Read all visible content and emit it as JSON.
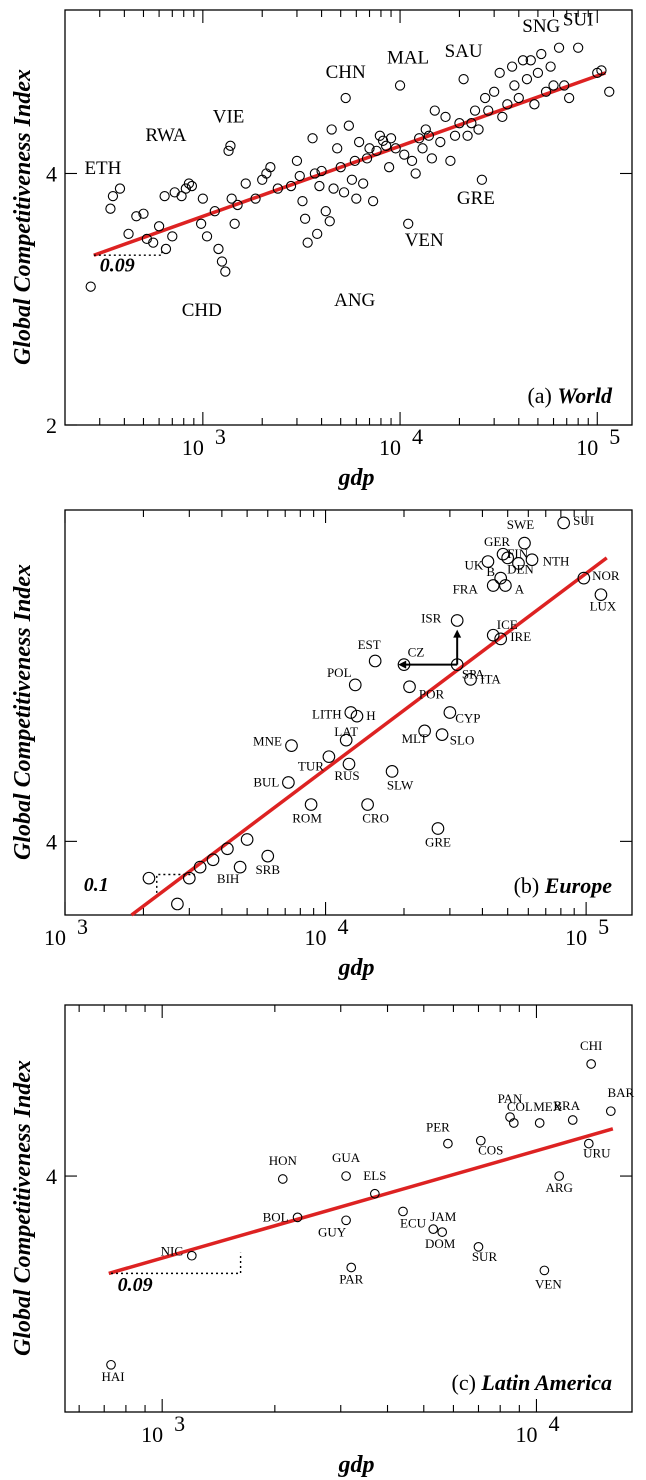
{
  "chart_data": [
    {
      "type": "scatter",
      "panel_label": "(a)",
      "title": "World",
      "xlabel": "gdp",
      "ylabel": "Global Competitiveness Index",
      "x_scale": "log",
      "xlim": [
        200,
        150000
      ],
      "ylim": [
        2,
        5.3
      ],
      "x_ticks": [
        {
          "v": 1000,
          "label": "10"
        },
        {
          "v": 10000,
          "label": "10"
        },
        {
          "v": 100000,
          "label": "10"
        }
      ],
      "x_tick_exps": [
        "3",
        "4",
        "5"
      ],
      "y_ticks": [
        {
          "v": 4,
          "label": "4"
        },
        {
          "v": 2,
          "label": "2"
        }
      ],
      "fit_line": [
        [
          280,
          3.35
        ],
        [
          110000,
          4.8
        ]
      ],
      "slope_label": "0.09",
      "labeled_points": [
        {
          "name": "ETH",
          "x": 350,
          "y": 3.82
        },
        {
          "name": "RWA",
          "x": 650,
          "y": 4.1
        },
        {
          "name": "VIE",
          "x": 1350,
          "y": 4.2
        },
        {
          "name": "CHD",
          "x": 900,
          "y": 3.04
        },
        {
          "name": "CHN",
          "x": 5300,
          "y": 4.6
        },
        {
          "name": "MAL",
          "x": 10000,
          "y": 4.7
        },
        {
          "name": "SAU",
          "x": 21000,
          "y": 4.75
        },
        {
          "name": "SNG",
          "x": 52000,
          "y": 4.95
        },
        {
          "name": "SUI",
          "x": 80000,
          "y": 5.0
        },
        {
          "name": "ANG",
          "x": 5000,
          "y": 3.12
        },
        {
          "name": "VEN",
          "x": 11000,
          "y": 3.6
        },
        {
          "name": "GRE",
          "x": 26000,
          "y": 3.95
        }
      ],
      "points": [
        [
          270,
          3.1
        ],
        [
          350,
          3.82
        ],
        [
          340,
          3.72
        ],
        [
          380,
          3.88
        ],
        [
          420,
          3.52
        ],
        [
          460,
          3.66
        ],
        [
          500,
          3.68
        ],
        [
          520,
          3.48
        ],
        [
          560,
          3.45
        ],
        [
          600,
          3.58
        ],
        [
          650,
          3.4
        ],
        [
          700,
          3.5
        ],
        [
          640,
          3.82
        ],
        [
          720,
          3.85
        ],
        [
          780,
          3.82
        ],
        [
          820,
          3.88
        ],
        [
          850,
          3.92
        ],
        [
          880,
          3.9
        ],
        [
          980,
          3.6
        ],
        [
          1000,
          3.8
        ],
        [
          1050,
          3.5
        ],
        [
          1150,
          3.7
        ],
        [
          1200,
          3.4
        ],
        [
          1250,
          3.3
        ],
        [
          1300,
          3.22
        ],
        [
          1350,
          4.18
        ],
        [
          1380,
          4.22
        ],
        [
          1400,
          3.8
        ],
        [
          1450,
          3.6
        ],
        [
          1500,
          3.75
        ],
        [
          1650,
          3.92
        ],
        [
          1850,
          3.8
        ],
        [
          2000,
          3.95
        ],
        [
          2100,
          4.0
        ],
        [
          2200,
          4.05
        ],
        [
          2400,
          3.88
        ],
        [
          2800,
          3.9
        ],
        [
          3000,
          4.1
        ],
        [
          3100,
          3.98
        ],
        [
          3200,
          3.78
        ],
        [
          3300,
          3.64
        ],
        [
          3400,
          3.45
        ],
        [
          3600,
          4.28
        ],
        [
          3700,
          4.0
        ],
        [
          3800,
          3.52
        ],
        [
          3900,
          3.9
        ],
        [
          4000,
          4.02
        ],
        [
          4200,
          3.7
        ],
        [
          4400,
          3.62
        ],
        [
          4500,
          4.35
        ],
        [
          4600,
          3.88
        ],
        [
          4800,
          4.2
        ],
        [
          5000,
          4.05
        ],
        [
          5200,
          3.85
        ],
        [
          5300,
          4.6
        ],
        [
          5500,
          4.38
        ],
        [
          5700,
          3.95
        ],
        [
          5900,
          4.1
        ],
        [
          6000,
          3.8
        ],
        [
          6200,
          4.25
        ],
        [
          6500,
          3.92
        ],
        [
          6800,
          4.12
        ],
        [
          7000,
          4.2
        ],
        [
          7300,
          3.78
        ],
        [
          7600,
          4.18
        ],
        [
          7900,
          4.3
        ],
        [
          8200,
          4.26
        ],
        [
          8500,
          4.22
        ],
        [
          8800,
          4.05
        ],
        [
          9000,
          4.28
        ],
        [
          9500,
          4.2
        ],
        [
          10000,
          4.7
        ],
        [
          10500,
          4.15
        ],
        [
          11000,
          3.6
        ],
        [
          11500,
          4.1
        ],
        [
          12000,
          4.0
        ],
        [
          12500,
          4.28
        ],
        [
          13000,
          4.2
        ],
        [
          13500,
          4.35
        ],
        [
          14000,
          4.3
        ],
        [
          14500,
          4.12
        ],
        [
          15000,
          4.5
        ],
        [
          16000,
          4.25
        ],
        [
          17000,
          4.45
        ],
        [
          18000,
          4.1
        ],
        [
          19000,
          4.3
        ],
        [
          20000,
          4.4
        ],
        [
          21000,
          4.75
        ],
        [
          22000,
          4.3
        ],
        [
          23000,
          4.4
        ],
        [
          24000,
          4.5
        ],
        [
          25000,
          4.35
        ],
        [
          26000,
          3.95
        ],
        [
          27000,
          4.6
        ],
        [
          28000,
          4.5
        ],
        [
          30000,
          4.65
        ],
        [
          32000,
          4.8
        ],
        [
          33000,
          4.45
        ],
        [
          35000,
          4.55
        ],
        [
          37000,
          4.85
        ],
        [
          38000,
          4.7
        ],
        [
          40000,
          4.6
        ],
        [
          42000,
          4.9
        ],
        [
          44000,
          4.75
        ],
        [
          46000,
          4.9
        ],
        [
          48000,
          4.55
        ],
        [
          50000,
          4.8
        ],
        [
          52000,
          4.95
        ],
        [
          55000,
          4.65
        ],
        [
          58000,
          4.85
        ],
        [
          60000,
          4.7
        ],
        [
          64000,
          5.0
        ],
        [
          68000,
          4.7
        ],
        [
          72000,
          4.6
        ],
        [
          80000,
          5.0
        ],
        [
          100000,
          4.8
        ],
        [
          105000,
          4.82
        ],
        [
          115000,
          4.65
        ]
      ]
    },
    {
      "type": "scatter",
      "panel_label": "(b)",
      "title": "Europe",
      "xlabel": "gdp",
      "ylabel": "Global Competitiveness Index",
      "x_scale": "log",
      "xlim": [
        1000,
        150000
      ],
      "ylim": [
        3.6,
        5.8
      ],
      "x_ticks": [
        {
          "v": 1000,
          "label": "10"
        },
        {
          "v": 10000,
          "label": "10"
        },
        {
          "v": 100000,
          "label": "10"
        }
      ],
      "x_tick_exps": [
        "3",
        "4",
        "5"
      ],
      "y_ticks": [
        {
          "v": 4,
          "label": "4"
        }
      ],
      "fit_line": [
        [
          1800,
          3.6
        ],
        [
          120000,
          5.54
        ]
      ],
      "slope_label": "0.1",
      "labeled_points": [
        {
          "name": "SUI",
          "x": 82000,
          "y": 5.73
        },
        {
          "name": "SWE",
          "x": 58000,
          "y": 5.62
        },
        {
          "name": "GER",
          "x": 48000,
          "y": 5.56
        },
        {
          "name": "FIN",
          "x": 50000,
          "y": 5.54
        },
        {
          "name": "UK",
          "x": 42000,
          "y": 5.52
        },
        {
          "name": "NTH",
          "x": 62000,
          "y": 5.53
        },
        {
          "name": "DEN",
          "x": 55000,
          "y": 5.51
        },
        {
          "name": "B",
          "x": 47000,
          "y": 5.43
        },
        {
          "name": "NOR",
          "x": 98000,
          "y": 5.43
        },
        {
          "name": "FRA",
          "x": 44000,
          "y": 5.39
        },
        {
          "name": "A",
          "x": 49000,
          "y": 5.39
        },
        {
          "name": "LUX",
          "x": 114000,
          "y": 5.34
        },
        {
          "name": "ISR",
          "x": 32000,
          "y": 5.2
        },
        {
          "name": "ICE",
          "x": 44000,
          "y": 5.12
        },
        {
          "name": "IRE",
          "x": 47000,
          "y": 5.1
        },
        {
          "name": "EST",
          "x": 15500,
          "y": 4.98
        },
        {
          "name": "CZ",
          "x": 20000,
          "y": 4.96
        },
        {
          "name": "SPA",
          "x": 32000,
          "y": 4.96
        },
        {
          "name": "POL",
          "x": 13000,
          "y": 4.85
        },
        {
          "name": "POR",
          "x": 21000,
          "y": 4.84
        },
        {
          "name": "ITA",
          "x": 36000,
          "y": 4.88
        },
        {
          "name": "LITH",
          "x": 12500,
          "y": 4.7
        },
        {
          "name": "H",
          "x": 13200,
          "y": 4.68
        },
        {
          "name": "CYP",
          "x": 30000,
          "y": 4.7
        },
        {
          "name": "MNE",
          "x": 7400,
          "y": 4.52
        },
        {
          "name": "LAT",
          "x": 12000,
          "y": 4.55
        },
        {
          "name": "MLT",
          "x": 24000,
          "y": 4.6
        },
        {
          "name": "SLO",
          "x": 28000,
          "y": 4.58
        },
        {
          "name": "TUR",
          "x": 10300,
          "y": 4.46
        },
        {
          "name": "BUL",
          "x": 7200,
          "y": 4.32
        },
        {
          "name": "RUS",
          "x": 12300,
          "y": 4.42
        },
        {
          "name": "SLW",
          "x": 18000,
          "y": 4.38
        },
        {
          "name": "ROM",
          "x": 8800,
          "y": 4.2
        },
        {
          "name": "CRO",
          "x": 14500,
          "y": 4.2
        },
        {
          "name": "SRB",
          "x": 6000,
          "y": 3.92
        },
        {
          "name": "BIH",
          "x": 4700,
          "y": 3.86
        },
        {
          "name": "GRE",
          "x": 27000,
          "y": 4.07
        }
      ],
      "points": [
        [
          2100,
          3.8
        ],
        [
          2700,
          3.66
        ],
        [
          3000,
          3.8
        ],
        [
          3300,
          3.86
        ],
        [
          3700,
          3.9
        ],
        [
          4200,
          3.96
        ],
        [
          4700,
          3.86
        ],
        [
          5000,
          4.01
        ],
        [
          6000,
          3.92
        ],
        [
          7200,
          4.32
        ],
        [
          7400,
          4.52
        ],
        [
          8800,
          4.2
        ],
        [
          10300,
          4.46
        ],
        [
          12000,
          4.55
        ],
        [
          12300,
          4.42
        ],
        [
          12500,
          4.7
        ],
        [
          13000,
          4.85
        ],
        [
          13200,
          4.68
        ],
        [
          14500,
          4.2
        ],
        [
          15500,
          4.98
        ],
        [
          18000,
          4.38
        ],
        [
          20000,
          4.96
        ],
        [
          21000,
          4.84
        ],
        [
          24000,
          4.6
        ],
        [
          27000,
          4.07
        ],
        [
          28000,
          4.58
        ],
        [
          30000,
          4.7
        ],
        [
          32000,
          5.2
        ],
        [
          32000,
          4.96
        ],
        [
          36000,
          4.88
        ],
        [
          42000,
          5.52
        ],
        [
          44000,
          5.12
        ],
        [
          44000,
          5.39
        ],
        [
          47000,
          5.43
        ],
        [
          47000,
          5.1
        ],
        [
          48000,
          5.56
        ],
        [
          49000,
          5.39
        ],
        [
          50000,
          5.54
        ],
        [
          55000,
          5.51
        ],
        [
          58000,
          5.62
        ],
        [
          62000,
          5.53
        ],
        [
          82000,
          5.73
        ],
        [
          98000,
          5.43
        ],
        [
          114000,
          5.34
        ]
      ]
    },
    {
      "type": "scatter",
      "panel_label": "(c)",
      "title": "Latin America",
      "xlabel": "gdp",
      "ylabel": "Global Competitiveness Index",
      "x_scale": "log",
      "xlim": [
        550,
        18000
      ],
      "ylim": [
        3.2,
        4.58
      ],
      "x_ticks": [
        {
          "v": 1000,
          "label": "10"
        },
        {
          "v": 10000,
          "label": "10"
        }
      ],
      "x_tick_exps": [
        "3",
        "4"
      ],
      "y_ticks": [
        {
          "v": 4,
          "label": "4"
        }
      ],
      "fit_line": [
        [
          720,
          3.67
        ],
        [
          16000,
          4.16
        ]
      ],
      "slope_label": "0.09",
      "labeled_points": [
        {
          "name": "CHI",
          "x": 14000,
          "y": 4.38
        },
        {
          "name": "BAR",
          "x": 15800,
          "y": 4.22
        },
        {
          "name": "PAN",
          "x": 8500,
          "y": 4.2
        },
        {
          "name": "MEX",
          "x": 10200,
          "y": 4.18
        },
        {
          "name": "BRA",
          "x": 12500,
          "y": 4.19
        },
        {
          "name": "PER",
          "x": 5800,
          "y": 4.11
        },
        {
          "name": "COL",
          "x": 8700,
          "y": 4.18
        },
        {
          "name": "COS",
          "x": 7100,
          "y": 4.12
        },
        {
          "name": "URU",
          "x": 13800,
          "y": 4.11
        },
        {
          "name": "HON",
          "x": 2100,
          "y": 3.99
        },
        {
          "name": "GUA",
          "x": 3100,
          "y": 4.0
        },
        {
          "name": "ELS",
          "x": 3700,
          "y": 3.94
        },
        {
          "name": "ARG",
          "x": 11500,
          "y": 4.0
        },
        {
          "name": "BOL",
          "x": 2300,
          "y": 3.86
        },
        {
          "name": "ECU",
          "x": 4400,
          "y": 3.88
        },
        {
          "name": "GUY",
          "x": 3100,
          "y": 3.85
        },
        {
          "name": "JAM",
          "x": 5300,
          "y": 3.82
        },
        {
          "name": "DOM",
          "x": 5600,
          "y": 3.81
        },
        {
          "name": "SUR",
          "x": 7000,
          "y": 3.76
        },
        {
          "name": "NIC",
          "x": 1200,
          "y": 3.73
        },
        {
          "name": "PAR",
          "x": 3200,
          "y": 3.69
        },
        {
          "name": "VEN",
          "x": 10500,
          "y": 3.68
        },
        {
          "name": "HAI",
          "x": 730,
          "y": 3.36
        }
      ],
      "points": [
        [
          730,
          3.36
        ],
        [
          1200,
          3.73
        ],
        [
          2100,
          3.99
        ],
        [
          2300,
          3.86
        ],
        [
          3100,
          4.0
        ],
        [
          3100,
          3.85
        ],
        [
          3200,
          3.69
        ],
        [
          3700,
          3.94
        ],
        [
          4400,
          3.88
        ],
        [
          5300,
          3.82
        ],
        [
          5600,
          3.81
        ],
        [
          5800,
          4.11
        ],
        [
          7000,
          3.76
        ],
        [
          7100,
          4.12
        ],
        [
          8500,
          4.2
        ],
        [
          8700,
          4.18
        ],
        [
          10200,
          4.18
        ],
        [
          10500,
          3.68
        ],
        [
          11500,
          4.0
        ],
        [
          12500,
          4.19
        ],
        [
          13800,
          4.11
        ],
        [
          14000,
          4.38
        ],
        [
          15800,
          4.22
        ]
      ]
    }
  ]
}
